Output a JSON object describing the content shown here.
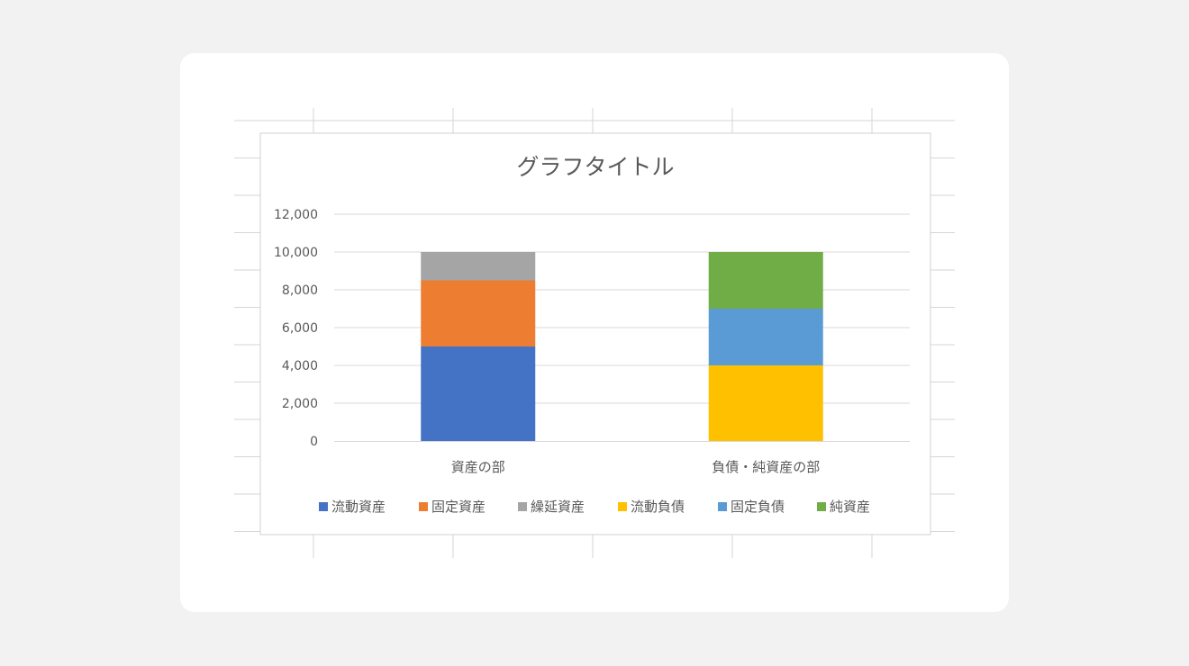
{
  "chart_data": {
    "type": "bar",
    "stacked": true,
    "title": "グラフタイトル",
    "categories": [
      "資産の部",
      "負債・純資産の部"
    ],
    "ylim": [
      0,
      12000
    ],
    "yticks": [
      0,
      2000,
      4000,
      6000,
      8000,
      10000,
      12000
    ],
    "ytick_labels": [
      "0",
      "2,000",
      "4,000",
      "6,000",
      "8,000",
      "10,000",
      "12,000"
    ],
    "grid": true,
    "legend_position": "bottom",
    "series": [
      {
        "name": "流動資産",
        "color": "#4472c4",
        "values": [
          5000,
          0
        ]
      },
      {
        "name": "固定資産",
        "color": "#ed7d31",
        "values": [
          3500,
          0
        ]
      },
      {
        "name": "繰延資産",
        "color": "#a5a5a5",
        "values": [
          1500,
          0
        ]
      },
      {
        "name": "流動負債",
        "color": "#ffc000",
        "values": [
          0,
          4000
        ]
      },
      {
        "name": "固定負債",
        "color": "#5b9bd5",
        "values": [
          0,
          3000
        ]
      },
      {
        "name": "純資産",
        "color": "#70ad47",
        "values": [
          0,
          3000
        ]
      }
    ]
  }
}
